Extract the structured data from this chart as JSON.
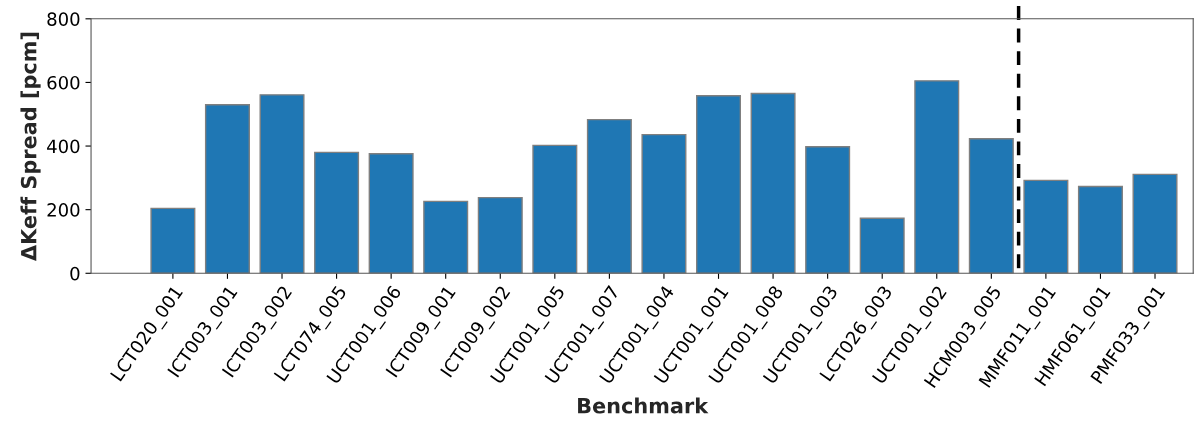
{
  "chart_data": {
    "type": "bar",
    "categories": [
      "LCT020_001",
      "ICT003_001",
      "ICT003_002",
      "LCT074_005",
      "UCT001_006",
      "ICT009_001",
      "ICT009_002",
      "UCT001_005",
      "UCT001_007",
      "UCT001_004",
      "UCT001_001",
      "UCT001_008",
      "UCT001_003",
      "LCT026_003",
      "UCT001_002",
      "HCM003_005",
      "MMF011_001",
      "HMF061_001",
      "PMF033_001"
    ],
    "values": [
      204,
      530,
      561,
      380,
      376,
      226,
      238,
      402,
      483,
      436,
      558,
      565,
      398,
      173,
      605,
      423,
      292,
      273,
      311
    ],
    "color": "#1f77b4",
    "xlabel": "Benchmark",
    "ylabel": "ΔKeff Spread [pcm]",
    "ylim": [
      0,
      800
    ],
    "yticks": [
      0,
      200,
      400,
      600,
      800
    ],
    "grid": false,
    "legend": false
  }
}
